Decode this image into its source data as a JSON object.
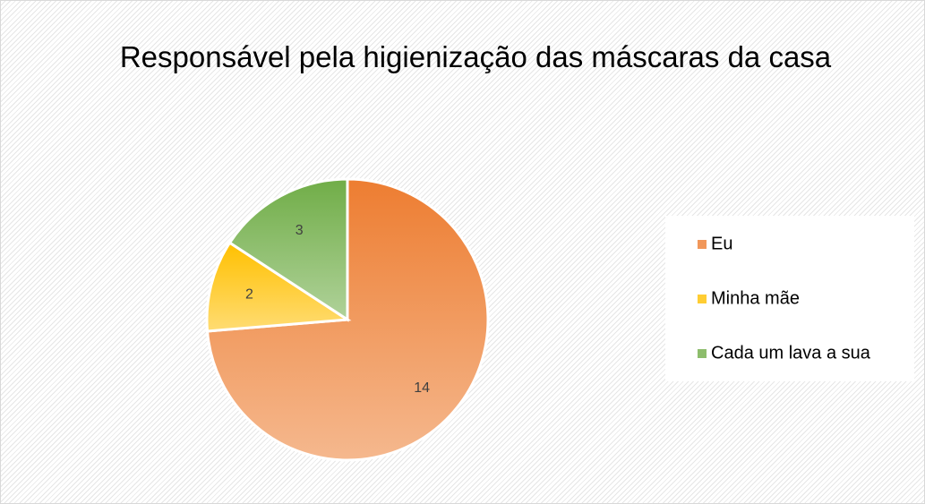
{
  "chart_data": {
    "type": "pie",
    "title": "Responsável pela higienização das máscaras da casa",
    "categories": [
      "Eu",
      "Minha mãe",
      "Cada um lava a sua"
    ],
    "values": [
      14,
      2,
      3
    ],
    "colors": [
      "#ed7d31",
      "#ffc000",
      "#70ad47"
    ],
    "legend": "right"
  }
}
